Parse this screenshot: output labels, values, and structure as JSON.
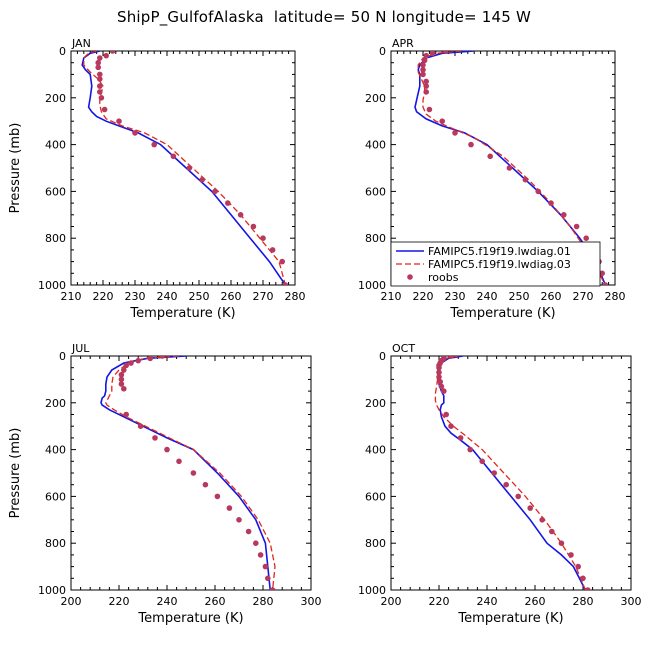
{
  "colors": {
    "model1": "#1515e6",
    "model2": "#e0291b",
    "obs": "#b8395e"
  },
  "chart_data": {
    "type": "line",
    "title": "ShipP_GulfofAlaska  latitude= 50 N longitude= 145 W",
    "legend": {
      "location": "inside APR panel, lower-left",
      "entries": [
        "FAMIPC5.f19f19.lwdiag.01",
        "FAMIPC5.f19f19.lwdiag.03",
        "roobs"
      ]
    },
    "panels": [
      {
        "name": "JAN",
        "xlabel": "Temperature (K)",
        "ylabel": "Pressure (mb)",
        "xlim": [
          210,
          280
        ],
        "ylim": [
          0,
          1000
        ],
        "xticks": [
          210,
          220,
          230,
          240,
          250,
          260,
          270,
          280
        ],
        "yticks": [
          0,
          200,
          400,
          600,
          800,
          1000
        ],
        "series": [
          {
            "name": "FAMIPC5.f19f19.lwdiag.01",
            "style": "solid",
            "x": [
              219,
              216,
              214,
              213.5,
              214.5,
              216,
              216.5,
              216,
              215.5,
              216.5,
              218,
              221,
              225,
              231,
              238,
              246,
              254,
              260,
              266,
              272,
              277
            ],
            "y": [
              0,
              10,
              30,
              60,
              80,
              100,
              150,
              200,
              240,
              260,
              280,
              300,
              320,
              350,
              400,
              500,
              600,
              700,
              800,
              900,
              1000
            ]
          },
          {
            "name": "FAMIPC5.f19f19.lwdiag.03",
            "style": "dashed",
            "x": [
              218,
              215.5,
              214,
              214,
              216,
              218.5,
              220,
              219.5,
              219,
              219,
              219.5,
              221,
              226,
              233,
              240,
              248,
              256,
              263,
              269,
              275,
              277
            ],
            "y": [
              0,
              10,
              30,
              60,
              90,
              120,
              150,
              180,
              200,
              230,
              260,
              290,
              320,
              350,
              400,
              500,
              600,
              700,
              800,
              900,
              1000
            ]
          },
          {
            "name": "roobs",
            "style": "dots",
            "x": [
              223,
              221,
              219,
              218.5,
              218.5,
              219,
              219,
              219,
              219,
              219.5,
              220.5,
              225,
              230,
              236,
              242,
              247,
              251,
              255,
              259,
              263,
              267,
              270,
              273,
              276,
              277
            ],
            "y": [
              0,
              20,
              30,
              50,
              70,
              100,
              120,
              150,
              175,
              200,
              250,
              300,
              350,
              400,
              450,
              500,
              550,
              600,
              650,
              700,
              750,
              800,
              850,
              900,
              1000
            ]
          }
        ]
      },
      {
        "name": "APR",
        "xlabel": "Temperature (K)",
        "ylabel": "",
        "xlim": [
          210,
          280
        ],
        "ylim": [
          0,
          1000
        ],
        "xticks": [
          210,
          220,
          230,
          240,
          250,
          260,
          270,
          280
        ],
        "yticks": [
          0,
          200,
          400,
          600,
          800,
          1000
        ],
        "series": [
          {
            "name": "FAMIPC5.f19f19.lwdiag.01",
            "style": "solid",
            "x": [
              236,
              226,
              221,
              219,
              218.5,
              219,
              219,
              218.5,
              218,
              217.5,
              218,
              221,
              226,
              233,
              240,
              248,
              256,
              263,
              269,
              274,
              277
            ],
            "y": [
              0,
              10,
              30,
              60,
              80,
              100,
              150,
              180,
              210,
              240,
              260,
              290,
              320,
              350,
              400,
              500,
              600,
              700,
              800,
              900,
              1000
            ]
          },
          {
            "name": "FAMIPC5.f19f19.lwdiag.03",
            "style": "dashed",
            "x": [
              232,
              224,
              220,
              218.5,
              218.5,
              219.5,
              220.5,
              220.5,
              220,
              220,
              221,
              224,
              229,
              236,
              245,
              253,
              260,
              266,
              271,
              277
            ],
            "y": [
              0,
              10,
              30,
              60,
              90,
              120,
              150,
              180,
              210,
              240,
              270,
              300,
              330,
              370,
              450,
              550,
              650,
              750,
              850,
              1000
            ]
          },
          {
            "name": "roobs",
            "style": "dots",
            "x": [
              227,
              223,
              221,
              220.5,
              220,
              220,
              220,
              221,
              221,
              221,
              222,
              226,
              230,
              235,
              241,
              247,
              252,
              256,
              260,
              264,
              268,
              271,
              273,
              275,
              276,
              277
            ],
            "y": [
              0,
              10,
              20,
              40,
              60,
              80,
              100,
              130,
              150,
              175,
              250,
              300,
              350,
              400,
              450,
              500,
              550,
              600,
              650,
              700,
              750,
              800,
              850,
              900,
              950,
              1000
            ]
          }
        ]
      },
      {
        "name": "JUL",
        "xlabel": "Temperature (K)",
        "ylabel": "Pressure (mb)",
        "xlim": [
          200,
          300
        ],
        "ylim": [
          0,
          1000
        ],
        "xticks": [
          200,
          220,
          240,
          260,
          280,
          300
        ],
        "yticks": [
          0,
          200,
          400,
          600,
          800,
          1000
        ],
        "series": [
          {
            "name": "FAMIPC5.f19f19.lwdiag.01",
            "style": "solid",
            "x": [
              248,
              232,
              222,
              217,
              215,
              214.5,
              214.5,
              214,
              213,
              212.5,
              213,
              216,
              222,
              230,
              240,
              251,
              261,
              270,
              277,
              281,
              283
            ],
            "y": [
              0,
              10,
              30,
              60,
              90,
              120,
              150,
              170,
              180,
              200,
              210,
              230,
              260,
              300,
              350,
              400,
              500,
              600,
              700,
              800,
              1000
            ]
          },
          {
            "name": "FAMIPC5.f19f19.lwdiag.03",
            "style": "dashed",
            "x": [
              245,
              231,
              224,
              220,
              217.5,
              217,
              217,
              216,
              215,
              214.5,
              215,
              218,
              223,
              231,
              241,
              251,
              262,
              271,
              278,
              283,
              285,
              284
            ],
            "y": [
              0,
              10,
              30,
              60,
              90,
              120,
              150,
              170,
              190,
              200,
              210,
              230,
              260,
              300,
              350,
              400,
              500,
              600,
              700,
              800,
              900,
              1000
            ]
          },
          {
            "name": "roobs",
            "style": "dots",
            "x": [
              238,
              233,
              228,
              225,
              223,
              222,
              221,
              221,
              221,
              222,
              223,
              229,
              235,
              240,
              245,
              251,
              256,
              261,
              266,
              270,
              274,
              277,
              279,
              281,
              282,
              284
            ],
            "y": [
              0,
              10,
              20,
              30,
              40,
              60,
              80,
              100,
              120,
              140,
              250,
              300,
              350,
              400,
              450,
              500,
              550,
              600,
              650,
              700,
              750,
              800,
              850,
              900,
              950,
              1000
            ]
          }
        ]
      },
      {
        "name": "OCT",
        "xlabel": "Temperature (K)",
        "ylabel": "",
        "xlim": [
          200,
          300
        ],
        "ylim": [
          0,
          1000
        ],
        "xticks": [
          200,
          220,
          240,
          260,
          280,
          300
        ],
        "yticks": [
          0,
          200,
          400,
          600,
          800,
          1000
        ],
        "series": [
          {
            "name": "FAMIPC5.f19f19.lwdiag.01",
            "style": "solid",
            "x": [
              230,
              224,
              221,
              219.5,
              219.5,
              220,
              221,
              222,
              222,
              221,
              220.5,
              221,
              222.5,
              225,
              229,
              234,
              242,
              250,
              258,
              265,
              271,
              276,
              281
            ],
            "y": [
              0,
              10,
              30,
              60,
              90,
              120,
              150,
              170,
              200,
              210,
              230,
              260,
              300,
              330,
              360,
              400,
              500,
              600,
              700,
              800,
              850,
              900,
              1000
            ]
          },
          {
            "name": "FAMIPC5.f19f19.lwdiag.03",
            "style": "dashed",
            "x": [
              228,
              223,
              220.5,
              219.5,
              219.5,
              219,
              218.5,
              218.5,
              219,
              220,
              222,
              226,
              231,
              238,
              247,
              256,
              264,
              271,
              277,
              281
            ],
            "y": [
              0,
              10,
              30,
              60,
              90,
              130,
              160,
              190,
              210,
              230,
              260,
              300,
              340,
              400,
              500,
              600,
              700,
              800,
              900,
              1000
            ]
          },
          {
            "name": "roobs",
            "style": "dots",
            "x": [
              225,
              222,
              221,
              220.5,
              220,
              220,
              220,
              220,
              220.5,
              221,
              222,
              223,
              225,
              229,
              233,
              238,
              243,
              248,
              253,
              258,
              263,
              267,
              271,
              275,
              278,
              280,
              282
            ],
            "y": [
              0,
              10,
              20,
              30,
              40,
              50,
              70,
              90,
              110,
              130,
              150,
              250,
              300,
              350,
              400,
              450,
              500,
              550,
              600,
              650,
              700,
              750,
              800,
              850,
              900,
              950,
              1000
            ]
          }
        ]
      }
    ]
  }
}
